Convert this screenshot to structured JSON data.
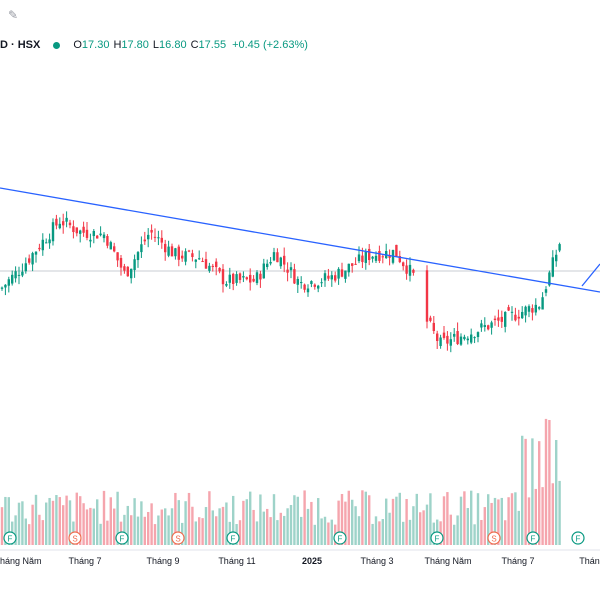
{
  "header": {
    "symbol": "D · HSX",
    "open_label": "O",
    "open": "17.30",
    "high_label": "H",
    "high": "17.80",
    "low_label": "L",
    "low": "16.80",
    "close_label": "C",
    "close": "17.55",
    "change": "+0.45 (+2.63%)"
  },
  "colors": {
    "up": "#089981",
    "down": "#f23645",
    "trendline": "#2962ff",
    "up_volume": "#9ed3c9",
    "down_volume": "#f5a5ad"
  },
  "chart_data": {
    "type": "candlestick",
    "x_ticks": [
      "Tháng Năm",
      "Tháng 7",
      "Tháng 9",
      "Tháng 11",
      "2025",
      "Tháng 3",
      "Tháng Năm",
      "Tháng 7",
      "Tháng"
    ],
    "markers": [
      "F",
      "S",
      "F",
      "S",
      "F",
      "F",
      "F",
      "S",
      "F",
      "F"
    ],
    "last_close": 17.55,
    "ohlc_anchor_closes": [
      15.9,
      16.6,
      18.3,
      17.9,
      17.8,
      16.4,
      17.9,
      17.1,
      17.0,
      16.2,
      16.2,
      17.2,
      16.1,
      16.3,
      17.1,
      17.2,
      16.3,
      14.9,
      14.0,
      14.4,
      14.8,
      15.4,
      17.55
    ],
    "trendlines": [
      {
        "from_index": 0,
        "from_price": 19.1,
        "to_index": 500,
        "to_price": 16.2
      }
    ],
    "volume": "relative bars, highest in final weeks"
  }
}
